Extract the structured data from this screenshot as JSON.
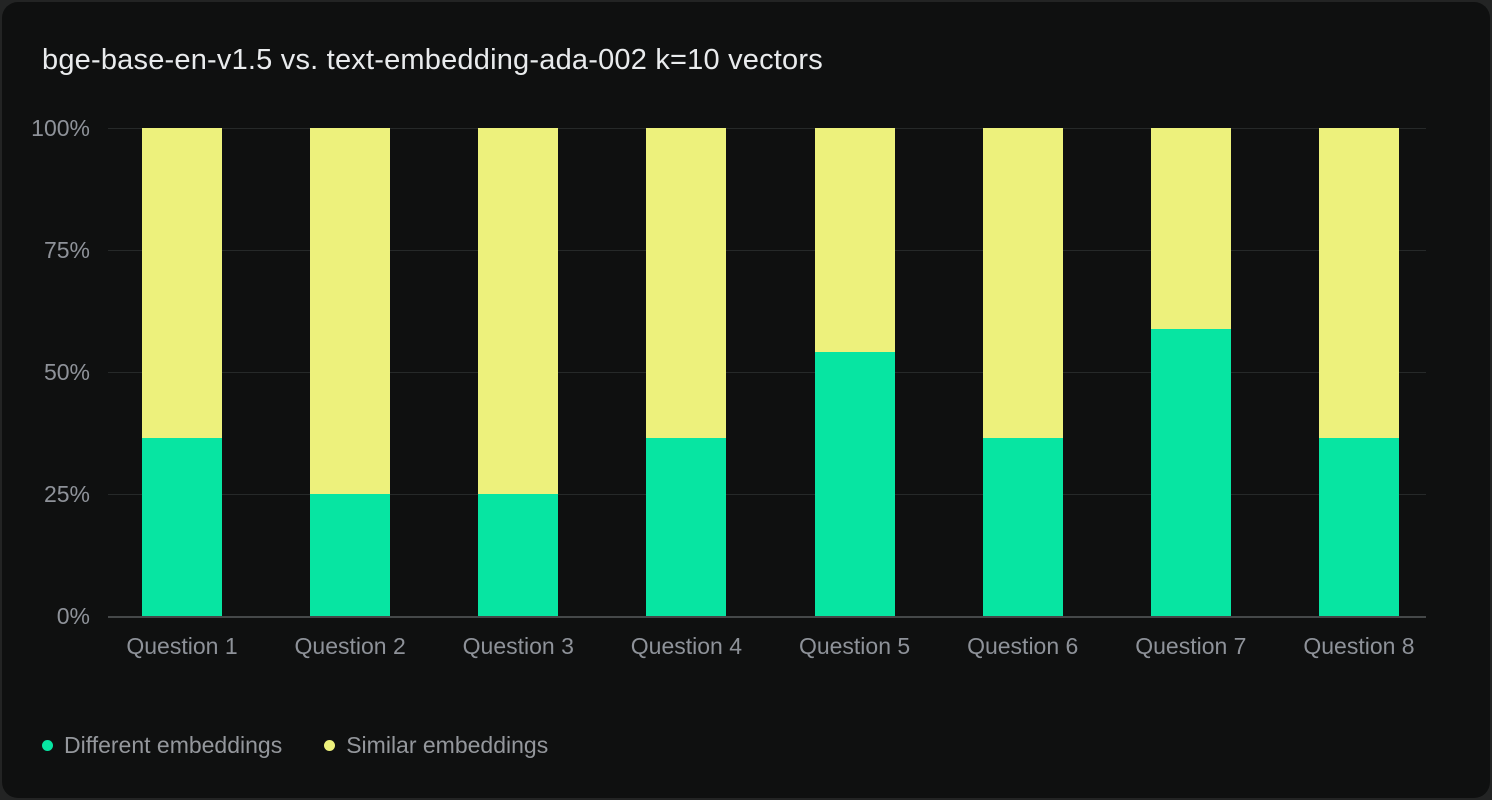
{
  "colors": {
    "page_background": "#232424",
    "card_background": "#0f1010",
    "title_text": "#e9ebed",
    "axis_text": "#8e9299",
    "legend_text": "#94979c",
    "gridline": "#262929",
    "zero_line": "#454849"
  },
  "chart_data": {
    "type": "bar",
    "variant": "stacked-percent",
    "title": "bge-base-en-v1.5 vs. text-embedding-ada-002 k=10 vectors",
    "categories": [
      "Question 1",
      "Question 2",
      "Question 3",
      "Question 4",
      "Question 5",
      "Question 6",
      "Question 7",
      "Question 8"
    ],
    "series": [
      {
        "name": "Different embeddings",
        "color": "#07e5a2",
        "values": [
          36.4,
          25,
          25,
          36.4,
          54,
          36.4,
          58.8,
          36.4
        ]
      },
      {
        "name": "Similar embeddings",
        "color": "#edf17c",
        "values": [
          63.6,
          75,
          75,
          63.6,
          46,
          63.6,
          41.2,
          63.6
        ]
      }
    ],
    "y_axis": {
      "min": 0,
      "max": 100,
      "ticks": [
        {
          "label": "100%",
          "value": 100
        },
        {
          "label": "75%",
          "value": 75
        },
        {
          "label": "50%",
          "value": 50
        },
        {
          "label": "25%",
          "value": 25
        },
        {
          "label": "0%",
          "value": 0
        }
      ]
    },
    "grid": "horizontal",
    "legend_position": "bottom-left"
  }
}
